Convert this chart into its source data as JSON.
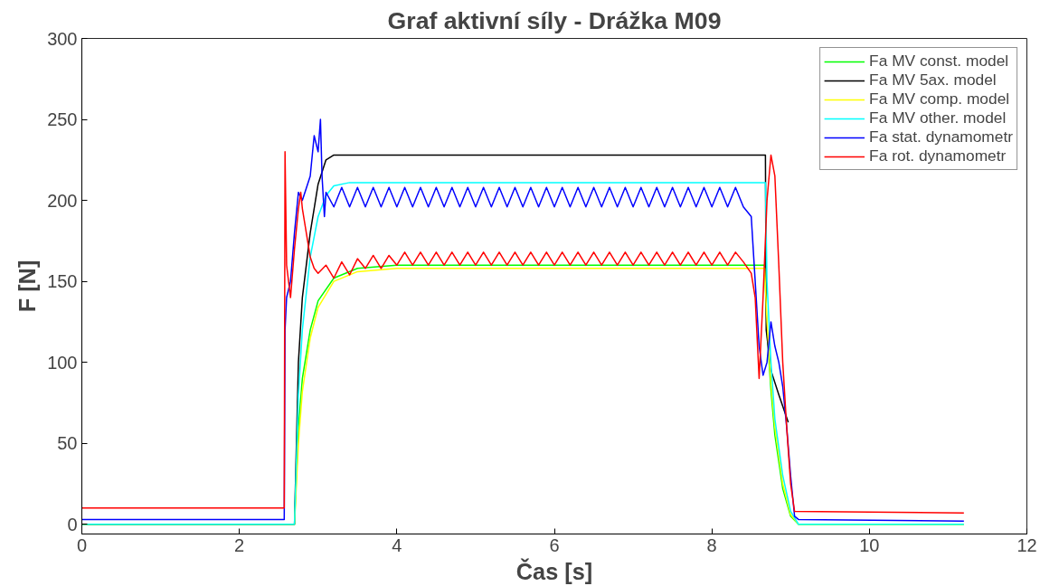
{
  "chart_data": {
    "type": "line",
    "title": "Graf aktivní síly - Drážka M09",
    "xlabel": "Čas [s]",
    "ylabel": "F [N]",
    "xlim": [
      0,
      12
    ],
    "ylim": [
      -6,
      300
    ],
    "xticks": [
      0,
      2,
      4,
      6,
      8,
      10,
      12
    ],
    "yticks": [
      0,
      50,
      100,
      150,
      200,
      250,
      300
    ],
    "grid": false,
    "legend": "top right",
    "marker": "none",
    "line_style": "solid",
    "series": [
      {
        "name": "Fa MV const. model",
        "color": "#00ff00",
        "x": [
          0,
          2.7,
          2.75,
          2.8,
          2.9,
          3.0,
          3.2,
          3.5,
          4.0,
          8.67,
          8.7,
          8.75,
          8.8,
          8.9,
          9.0,
          9.1,
          11.2
        ],
        "values": [
          0,
          0,
          60,
          90,
          120,
          138,
          152,
          158,
          160,
          160,
          120,
          83,
          55,
          22,
          5,
          0,
          0
        ]
      },
      {
        "name": "Fa MV 5ax. model",
        "color": "#000000",
        "x": [
          0,
          2.7,
          2.75,
          2.8,
          2.9,
          3.0,
          3.1,
          3.2,
          8.68,
          8.69,
          8.75,
          8.85,
          8.97
        ],
        "values": [
          0,
          0,
          100,
          140,
          180,
          210,
          225,
          228,
          228,
          120,
          95,
          80,
          63
        ]
      },
      {
        "name": "Fa MV comp. model",
        "color": "#ffff00",
        "x": [
          0,
          2.7,
          2.75,
          2.8,
          2.9,
          3.0,
          3.2,
          3.5,
          4.0,
          8.67,
          8.7,
          8.75,
          8.8,
          8.9,
          9.0,
          9.1,
          11.2
        ],
        "values": [
          0,
          0,
          50,
          82,
          115,
          134,
          150,
          156,
          158,
          158,
          125,
          88,
          60,
          25,
          6,
          0,
          0
        ]
      },
      {
        "name": "Fa MV other. model",
        "color": "#00ffff",
        "x": [
          0,
          2.7,
          2.75,
          2.8,
          2.9,
          3.0,
          3.1,
          3.2,
          3.4,
          8.68,
          8.7,
          8.75,
          8.8,
          8.9,
          9.0,
          9.1,
          11.2
        ],
        "values": [
          0,
          0,
          80,
          120,
          165,
          190,
          203,
          209,
          211,
          211,
          150,
          100,
          65,
          30,
          8,
          0,
          0
        ]
      },
      {
        "name": "Fa stat. dynamometr",
        "color": "#0000ff",
        "x": [
          0,
          2.57,
          2.58,
          2.6,
          2.65,
          2.7,
          2.75,
          2.8,
          2.9,
          2.95,
          3.0,
          3.03,
          3.05,
          3.08,
          3.1,
          3.2,
          3.3,
          3.4,
          3.5,
          3.6,
          3.7,
          3.8,
          3.9,
          4.0,
          4.1,
          4.2,
          4.3,
          4.4,
          4.5,
          4.6,
          4.7,
          4.8,
          4.9,
          5.0,
          5.1,
          5.2,
          5.3,
          5.4,
          5.5,
          5.6,
          5.7,
          5.8,
          5.9,
          6.0,
          6.1,
          6.2,
          6.3,
          6.4,
          6.5,
          6.6,
          6.7,
          6.8,
          6.9,
          7.0,
          7.1,
          7.2,
          7.3,
          7.4,
          7.5,
          7.6,
          7.7,
          7.8,
          7.9,
          8.0,
          8.1,
          8.2,
          8.3,
          8.4,
          8.5,
          8.55,
          8.6,
          8.65,
          8.7,
          8.75,
          8.8,
          8.85,
          8.9,
          8.95,
          9.0,
          9.05,
          9.1,
          11.2
        ],
        "values": [
          3,
          3,
          120,
          140,
          150,
          180,
          205,
          200,
          215,
          240,
          230,
          250,
          215,
          190,
          205,
          196,
          208,
          196,
          208,
          196,
          208,
          196,
          208,
          196,
          208,
          196,
          208,
          196,
          208,
          196,
          208,
          196,
          208,
          196,
          208,
          196,
          208,
          196,
          208,
          196,
          208,
          196,
          208,
          196,
          208,
          196,
          208,
          196,
          208,
          196,
          208,
          196,
          208,
          196,
          208,
          196,
          208,
          196,
          208,
          196,
          208,
          196,
          208,
          196,
          208,
          196,
          208,
          196,
          190,
          150,
          110,
          92,
          100,
          125,
          110,
          100,
          85,
          60,
          30,
          5,
          3,
          2
        ]
      },
      {
        "name": "Fa rot. dynamometr",
        "color": "#ff0000",
        "x": [
          0,
          2.57,
          2.58,
          2.6,
          2.65,
          2.7,
          2.75,
          2.78,
          2.8,
          2.85,
          2.9,
          2.95,
          3.0,
          3.1,
          3.2,
          3.3,
          3.4,
          3.5,
          3.6,
          3.7,
          3.8,
          3.9,
          4.0,
          4.1,
          4.2,
          4.3,
          4.4,
          4.5,
          4.6,
          4.7,
          4.8,
          4.9,
          5.0,
          5.1,
          5.2,
          5.3,
          5.4,
          5.5,
          5.6,
          5.7,
          5.8,
          5.9,
          6.0,
          6.1,
          6.2,
          6.3,
          6.4,
          6.5,
          6.6,
          6.7,
          6.8,
          6.9,
          7.0,
          7.1,
          7.2,
          7.3,
          7.4,
          7.5,
          7.6,
          7.7,
          7.8,
          7.9,
          8.0,
          8.1,
          8.2,
          8.3,
          8.4,
          8.5,
          8.55,
          8.6,
          8.65,
          8.7,
          8.75,
          8.8,
          8.85,
          8.9,
          8.95,
          9.0,
          9.05,
          11.2
        ],
        "values": [
          10,
          10,
          230,
          160,
          140,
          170,
          195,
          205,
          195,
          180,
          165,
          158,
          155,
          160,
          152,
          162,
          154,
          164,
          158,
          166,
          158,
          166,
          160,
          168,
          160,
          168,
          160,
          168,
          160,
          168,
          160,
          168,
          160,
          168,
          160,
          168,
          160,
          168,
          160,
          168,
          160,
          168,
          160,
          168,
          160,
          168,
          160,
          168,
          160,
          168,
          160,
          168,
          160,
          168,
          160,
          168,
          160,
          168,
          160,
          168,
          160,
          168,
          160,
          168,
          160,
          168,
          162,
          155,
          140,
          90,
          140,
          200,
          228,
          215,
          160,
          100,
          60,
          25,
          8,
          7
        ]
      }
    ]
  }
}
